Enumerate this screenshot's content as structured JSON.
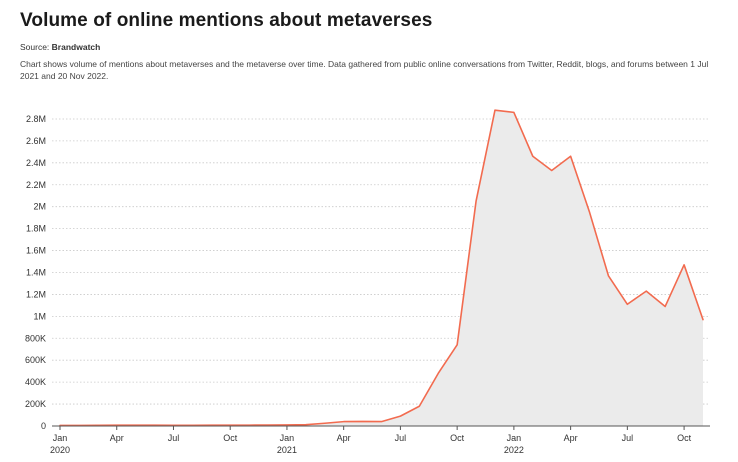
{
  "header": {
    "title": "Volume of online mentions about metaverses",
    "source_label": "Source:",
    "source_name": "Brandwatch",
    "description": "Chart shows volume of mentions about metaverses and the metaverse over time. Data gathered from public online conversations from Twitter, Reddit, blogs, and forums between 1 Jul 2021 and 20 Nov 2022."
  },
  "colors": {
    "line": "#f26b4f",
    "area": "#ebebeb",
    "grid": "#c9c9c9",
    "axis": "#555555"
  },
  "chart_data": {
    "type": "area",
    "title": "Volume of online mentions about metaverses",
    "xlabel": "",
    "ylabel": "",
    "ylim": [
      0,
      2900000
    ],
    "y_ticks": [
      {
        "value": 0,
        "label": "0"
      },
      {
        "value": 200000,
        "label": "200K"
      },
      {
        "value": 400000,
        "label": "400K"
      },
      {
        "value": 600000,
        "label": "600K"
      },
      {
        "value": 800000,
        "label": "800K"
      },
      {
        "value": 1000000,
        "label": "1M"
      },
      {
        "value": 1200000,
        "label": "1.2M"
      },
      {
        "value": 1400000,
        "label": "1.4M"
      },
      {
        "value": 1600000,
        "label": "1.6M"
      },
      {
        "value": 1800000,
        "label": "1.8M"
      },
      {
        "value": 2000000,
        "label": "2M"
      },
      {
        "value": 2200000,
        "label": "2.2M"
      },
      {
        "value": 2400000,
        "label": "2.4M"
      },
      {
        "value": 2600000,
        "label": "2.6M"
      },
      {
        "value": 2800000,
        "label": "2.8M"
      }
    ],
    "x_ticks": [
      {
        "value": "2020-01",
        "label": "Jan",
        "sublabel": "2020"
      },
      {
        "value": "2020-04",
        "label": "Apr",
        "sublabel": ""
      },
      {
        "value": "2020-07",
        "label": "Jul",
        "sublabel": ""
      },
      {
        "value": "2020-10",
        "label": "Oct",
        "sublabel": ""
      },
      {
        "value": "2021-01",
        "label": "Jan",
        "sublabel": "2021"
      },
      {
        "value": "2021-04",
        "label": "Apr",
        "sublabel": ""
      },
      {
        "value": "2021-07",
        "label": "Jul",
        "sublabel": ""
      },
      {
        "value": "2021-10",
        "label": "Oct",
        "sublabel": ""
      },
      {
        "value": "2022-01",
        "label": "Jan",
        "sublabel": "2022"
      },
      {
        "value": "2022-04",
        "label": "Apr",
        "sublabel": ""
      },
      {
        "value": "2022-07",
        "label": "Jul",
        "sublabel": ""
      },
      {
        "value": "2022-10",
        "label": "Oct",
        "sublabel": ""
      }
    ],
    "series": [
      {
        "points": [
          {
            "x": "2020-01",
            "y": 5000
          },
          {
            "x": "2020-02",
            "y": 5000
          },
          {
            "x": "2020-03",
            "y": 6000
          },
          {
            "x": "2020-04",
            "y": 8000
          },
          {
            "x": "2020-05",
            "y": 8000
          },
          {
            "x": "2020-06",
            "y": 7000
          },
          {
            "x": "2020-07",
            "y": 6000
          },
          {
            "x": "2020-08",
            "y": 6000
          },
          {
            "x": "2020-09",
            "y": 7000
          },
          {
            "x": "2020-10",
            "y": 8000
          },
          {
            "x": "2020-11",
            "y": 8000
          },
          {
            "x": "2020-12",
            "y": 9000
          },
          {
            "x": "2021-01",
            "y": 10000
          },
          {
            "x": "2021-02",
            "y": 12000
          },
          {
            "x": "2021-03",
            "y": 25000
          },
          {
            "x": "2021-04",
            "y": 40000
          },
          {
            "x": "2021-05",
            "y": 42000
          },
          {
            "x": "2021-06",
            "y": 40000
          },
          {
            "x": "2021-07",
            "y": 90000
          },
          {
            "x": "2021-08",
            "y": 180000
          },
          {
            "x": "2021-09",
            "y": 480000
          },
          {
            "x": "2021-10",
            "y": 740000
          },
          {
            "x": "2021-11",
            "y": 2050000
          },
          {
            "x": "2021-12",
            "y": 2880000
          },
          {
            "x": "2022-01",
            "y": 2860000
          },
          {
            "x": "2022-02",
            "y": 2460000
          },
          {
            "x": "2022-03",
            "y": 2330000
          },
          {
            "x": "2022-04",
            "y": 2460000
          },
          {
            "x": "2022-05",
            "y": 1950000
          },
          {
            "x": "2022-06",
            "y": 1370000
          },
          {
            "x": "2022-07",
            "y": 1110000
          },
          {
            "x": "2022-08",
            "y": 1230000
          },
          {
            "x": "2022-09",
            "y": 1090000
          },
          {
            "x": "2022-10",
            "y": 1470000
          },
          {
            "x": "2022-11",
            "y": 970000
          }
        ]
      }
    ],
    "grid": true,
    "legend": "none"
  }
}
